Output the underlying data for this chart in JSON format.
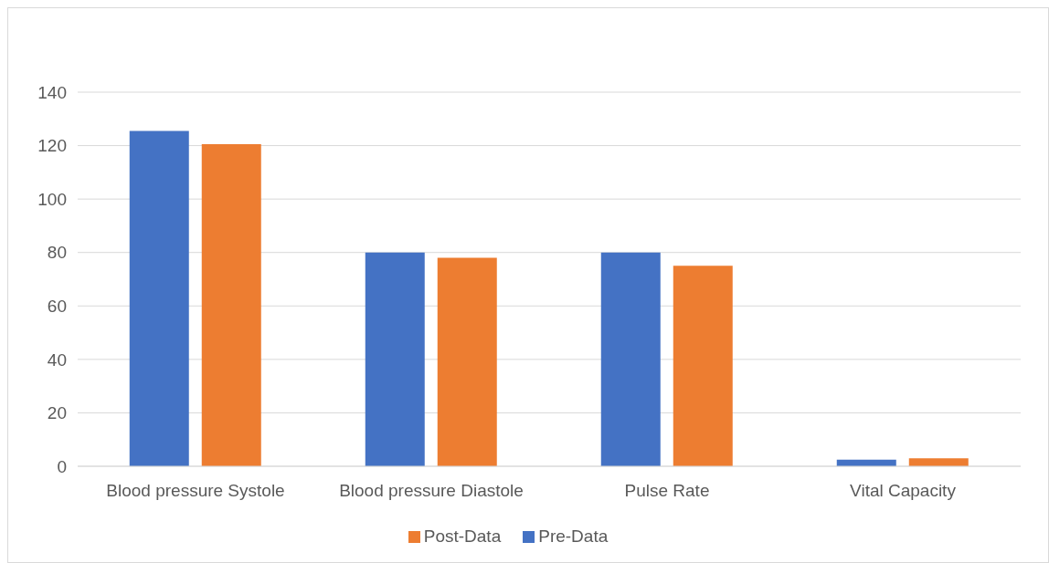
{
  "chart_data": {
    "type": "bar",
    "categories": [
      "Blood pressure Systole",
      "Blood pressure Diastole",
      "Pulse Rate",
      "Vital Capacity"
    ],
    "series": [
      {
        "name": "Pre-Data",
        "color": "#4472c4",
        "values": [
          125.5,
          80,
          80,
          2.5
        ]
      },
      {
        "name": "Post-Data",
        "color": "#ed7d31",
        "values": [
          120.5,
          78,
          75,
          3
        ]
      }
    ],
    "ylim": [
      0,
      140
    ],
    "yticks": [
      0,
      20,
      40,
      60,
      80,
      100,
      120,
      140
    ],
    "grid": "y",
    "legend": "bottom"
  }
}
